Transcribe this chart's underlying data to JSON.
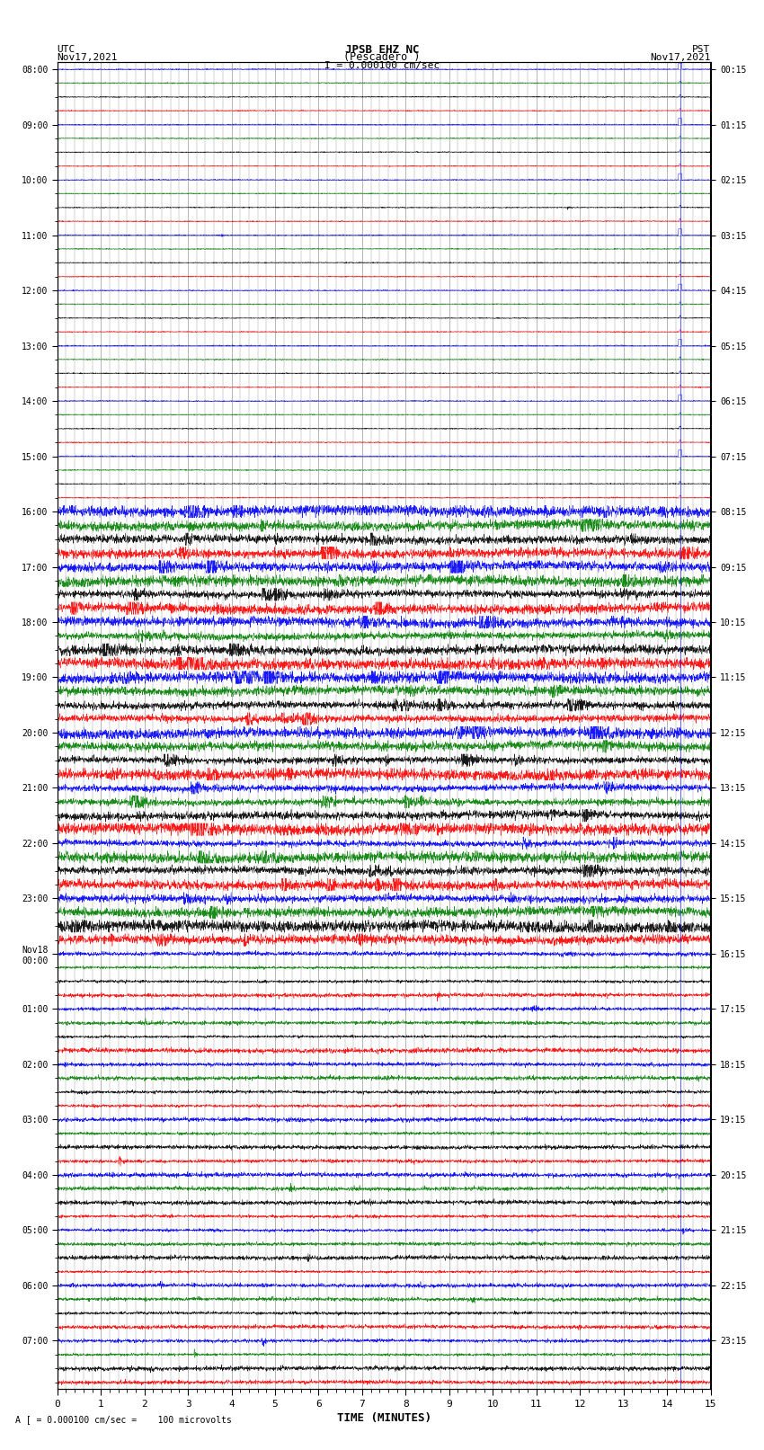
{
  "title_line1": "JPSB EHZ NC",
  "title_line2": "(Pescadero )",
  "title_line3": "I = 0.000100 cm/sec",
  "left_label_line1": "UTC",
  "left_label_line2": "Nov17,2021",
  "right_label_line1": "PST",
  "right_label_line2": "Nov17,2021",
  "xlabel": "TIME (MINUTES)",
  "bottom_label": "A [ = 0.000100 cm/sec =    100 microvolts",
  "utc_times": [
    "08:00",
    "09:00",
    "10:00",
    "11:00",
    "12:00",
    "13:00",
    "14:00",
    "15:00",
    "16:00",
    "17:00",
    "18:00",
    "19:00",
    "20:00",
    "21:00",
    "22:00",
    "23:00",
    "Nov18\n00:00",
    "01:00",
    "02:00",
    "03:00",
    "04:00",
    "05:00",
    "06:00",
    "07:00"
  ],
  "pst_times": [
    "00:15",
    "01:15",
    "02:15",
    "03:15",
    "04:15",
    "05:15",
    "06:15",
    "07:15",
    "08:15",
    "09:15",
    "10:15",
    "11:15",
    "12:15",
    "13:15",
    "14:15",
    "15:15",
    "16:15",
    "17:15",
    "18:15",
    "19:15",
    "20:15",
    "21:15",
    "22:15",
    "23:15"
  ],
  "n_rows": 96,
  "n_minutes": 15,
  "colors_cycle": [
    "blue",
    "green",
    "black",
    "red"
  ],
  "bg_color": "white",
  "grid_color": "#999999",
  "spike_time": 14.3
}
